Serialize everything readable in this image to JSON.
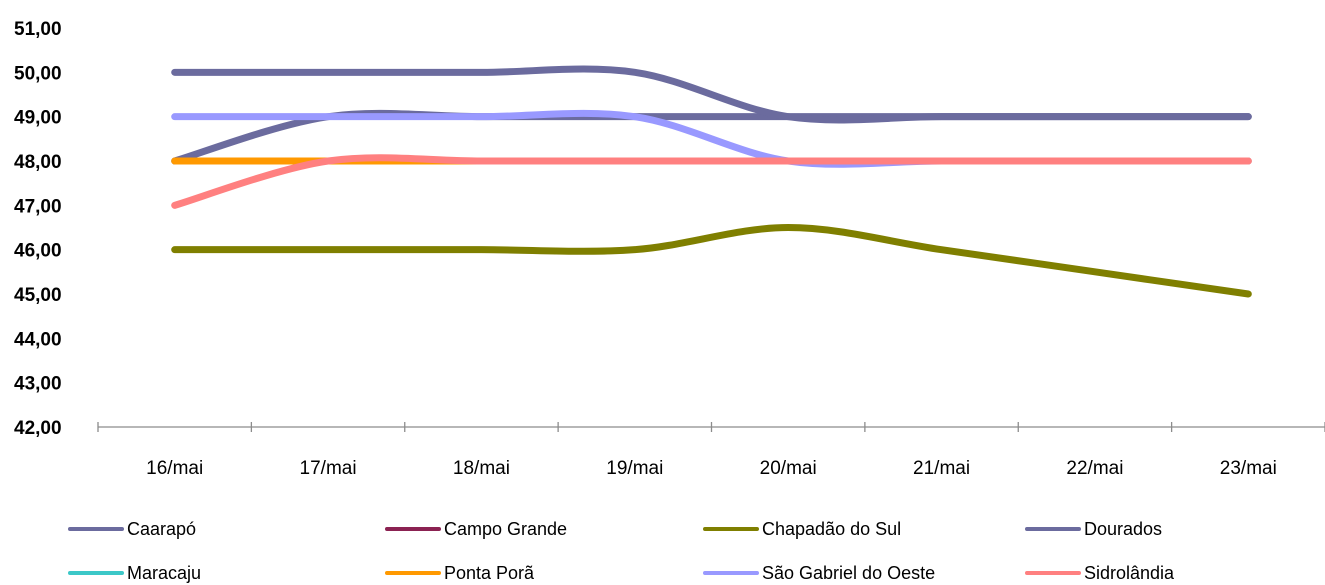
{
  "chart_data": {
    "type": "line",
    "categories": [
      "16/mai",
      "17/mai",
      "18/mai",
      "19/mai",
      "20/mai",
      "21/mai",
      "22/mai",
      "23/mai"
    ],
    "ylim": [
      42,
      51
    ],
    "yticks": [
      "42,00",
      "43,00",
      "44,00",
      "45,00",
      "46,00",
      "47,00",
      "48,00",
      "49,00",
      "50,00",
      "51,00"
    ],
    "smooth": true,
    "legend_position": "bottom",
    "series": [
      {
        "name": "Caarapó",
        "color": "#6b6b9e",
        "values": [
          48,
          49,
          49,
          49,
          49,
          49,
          49,
          49
        ]
      },
      {
        "name": "Campo Grande",
        "color": "#8b2252",
        "values": [
          null,
          null,
          null,
          null,
          null,
          null,
          null,
          null
        ]
      },
      {
        "name": "Chapadão do Sul",
        "color": "#7f7f00",
        "values": [
          46,
          46,
          46,
          46,
          46.5,
          46,
          45.5,
          45
        ]
      },
      {
        "name": "Dourados",
        "color": "#6b6b9e",
        "values": [
          50,
          50,
          50,
          50,
          49,
          49,
          49,
          49
        ]
      },
      {
        "name": "Maracaju",
        "color": "#3cc8c8",
        "values": [
          null,
          null,
          null,
          null,
          null,
          null,
          null,
          null
        ]
      },
      {
        "name": "Ponta Porã",
        "color": "#ff9900",
        "values": [
          48,
          48,
          48,
          48,
          48,
          48,
          48,
          48
        ]
      },
      {
        "name": "São Gabriel do Oeste",
        "color": "#9999ff",
        "values": [
          49,
          49,
          49,
          49,
          48,
          48,
          48,
          48
        ]
      },
      {
        "name": "Sidrolândia",
        "color": "#ff8080",
        "values": [
          47,
          48,
          48,
          48,
          48,
          48,
          48,
          48
        ]
      }
    ]
  }
}
